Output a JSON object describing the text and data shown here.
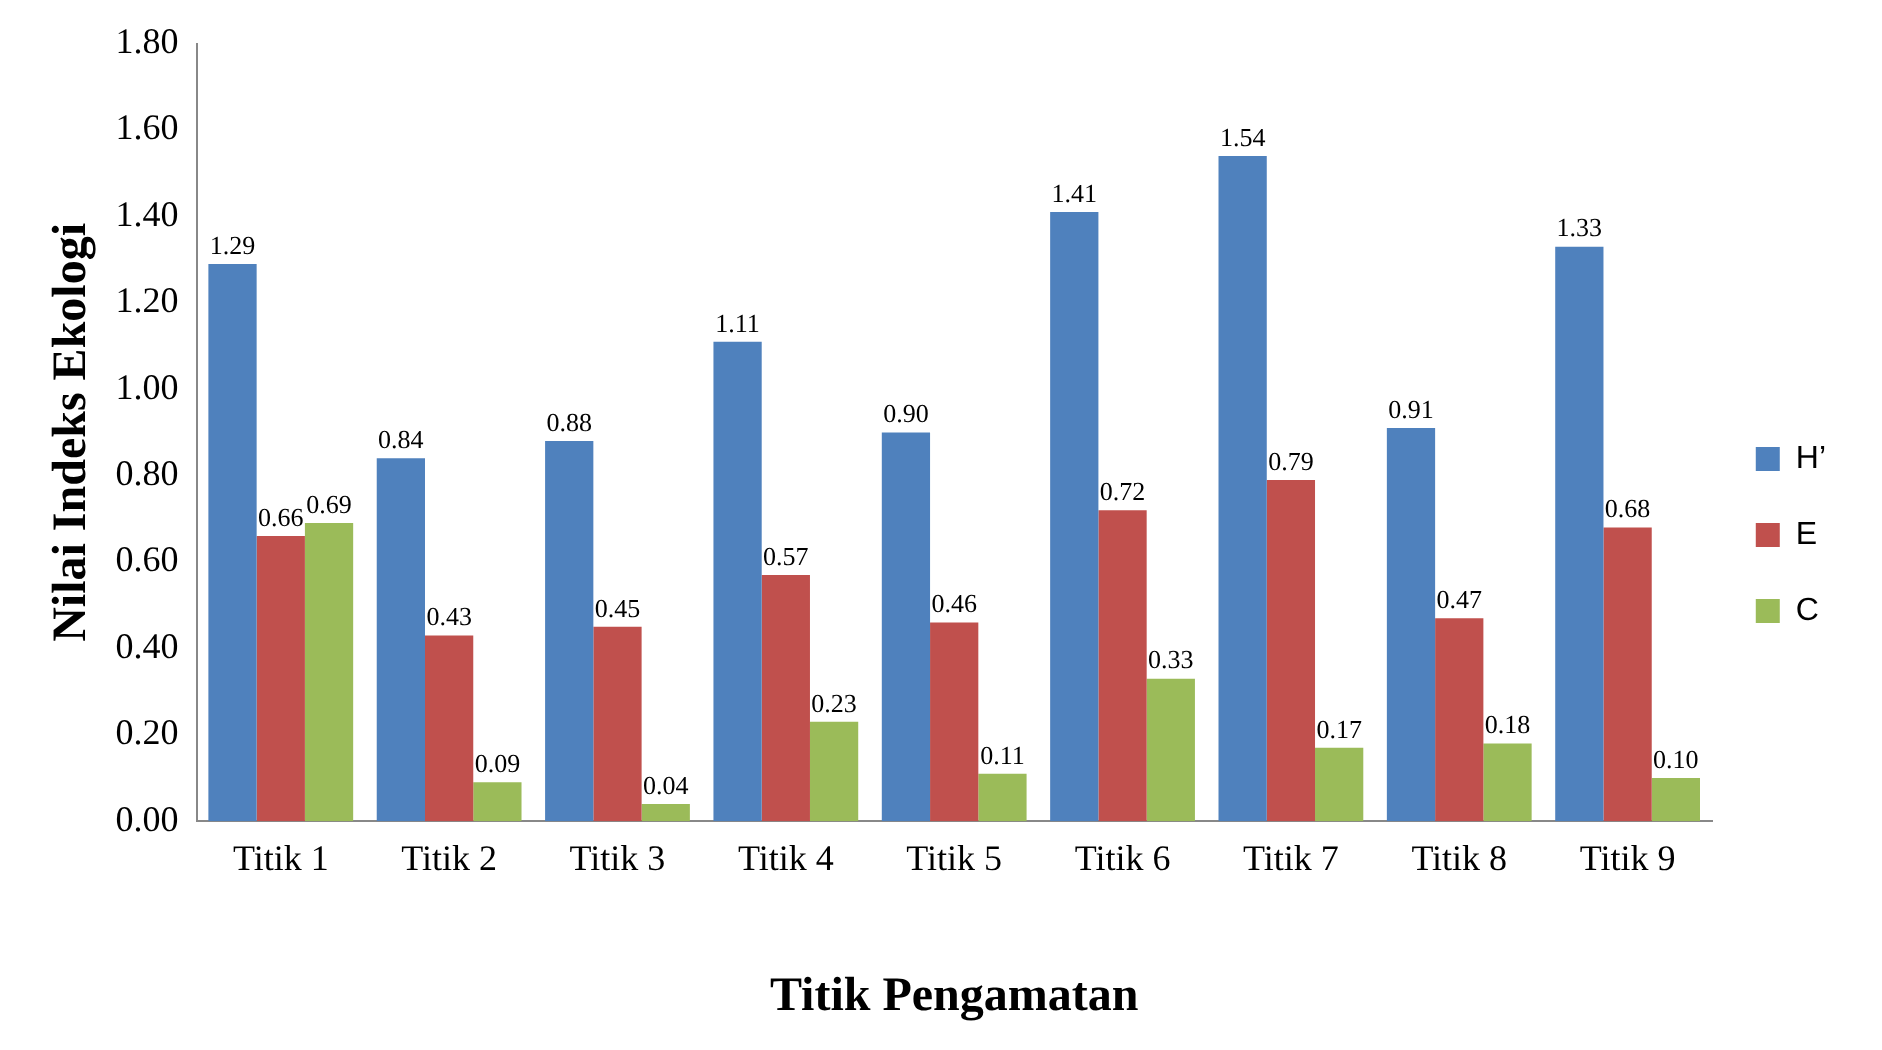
{
  "chart_data": {
    "type": "bar",
    "xlabel": "Titik Pengamatan",
    "ylabel": "Nilai Indeks Ekologi",
    "categories": [
      "Titik 1",
      "Titik 2",
      "Titik 3",
      "Titik 4",
      "Titik 5",
      "Titik 6",
      "Titik 7",
      "Titik 8",
      "Titik 9"
    ],
    "series": [
      {
        "name": "H’",
        "color": "#4f81bd",
        "values": [
          1.29,
          0.84,
          0.88,
          1.11,
          0.9,
          1.41,
          1.54,
          0.91,
          1.33
        ],
        "value_labels": [
          "1.29",
          "0.84",
          "0.88",
          "1.11",
          "0.90",
          "1.41",
          "1.54",
          "0.91",
          "1.33"
        ]
      },
      {
        "name": "E",
        "color": "#c0504d",
        "values": [
          0.66,
          0.43,
          0.45,
          0.57,
          0.46,
          0.72,
          0.79,
          0.47,
          0.68
        ],
        "value_labels": [
          "0.66",
          "0.43",
          "0.45",
          "0.57",
          "0.46",
          "0.72",
          "0.79",
          "0.47",
          "0.68"
        ]
      },
      {
        "name": "C",
        "color": "#9bbb59",
        "values": [
          0.69,
          0.09,
          0.04,
          0.23,
          0.11,
          0.33,
          0.17,
          0.18,
          0.1
        ],
        "value_labels": [
          "0.69",
          "0.09",
          "0.04",
          "0.23",
          "0.11",
          "0.33",
          "0.17",
          "0.18",
          "0.10"
        ]
      }
    ],
    "ylim": [
      0,
      1.8
    ],
    "yticks": [
      {
        "value": 0,
        "label": "0.00"
      },
      {
        "value": 0.2,
        "label": "0.20"
      },
      {
        "value": 0.4,
        "label": "0.40"
      },
      {
        "value": 0.6,
        "label": "0.60"
      },
      {
        "value": 0.8,
        "label": "0.80"
      },
      {
        "value": 1,
        "label": "1.00"
      },
      {
        "value": 1.2,
        "label": "1.20"
      },
      {
        "value": 1.4,
        "label": "1.40"
      },
      {
        "value": 1.6,
        "label": "1.60"
      },
      {
        "value": 1.8,
        "label": "1.80"
      }
    ],
    "grid": false,
    "legend": "right"
  }
}
